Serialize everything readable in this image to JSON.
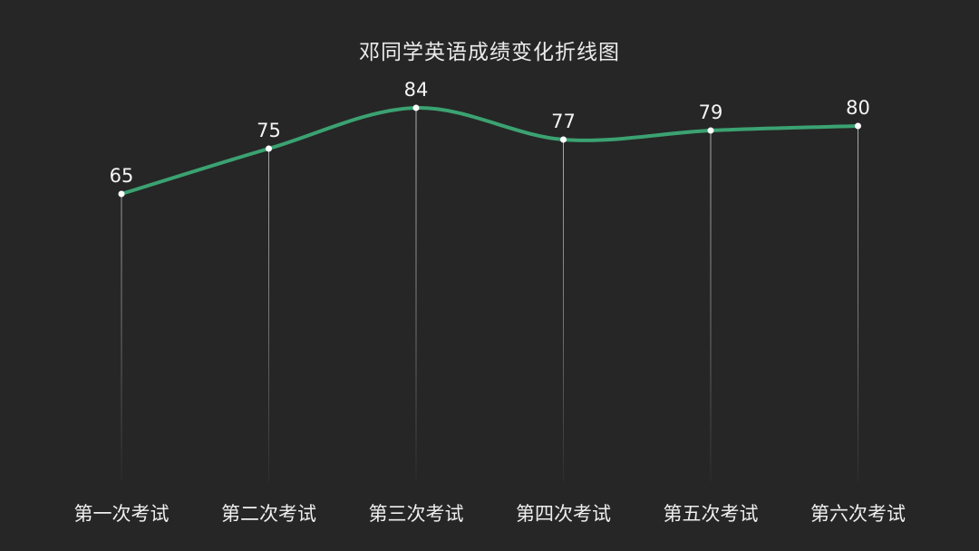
{
  "title": "邓同学英语成绩变化折线图",
  "chart_data": {
    "type": "line",
    "title": "邓同学英语成绩变化折线图",
    "categories": [
      "第一次考试",
      "第二次考试",
      "第三次考试",
      "第四次考试",
      "第五次考试",
      "第六次考试"
    ],
    "values": [
      65,
      75,
      84,
      77,
      79,
      80
    ],
    "value_labels": [
      "65",
      "75",
      "84",
      "77",
      "79",
      "80"
    ],
    "xlabel": "",
    "ylabel": "",
    "ylim": [
      0,
      100
    ],
    "smooth": true,
    "grid": false,
    "legend": "none",
    "markers": "white-dot",
    "drop_lines": true,
    "colors": {
      "background": "#262626",
      "line": "#3ba272",
      "marker": "#ffffff",
      "title_text": "#ececec",
      "value_text": "#f5f5f5",
      "axis_text": "#efefef",
      "drop_line": "rgba(255,255,255,0.5)"
    }
  }
}
